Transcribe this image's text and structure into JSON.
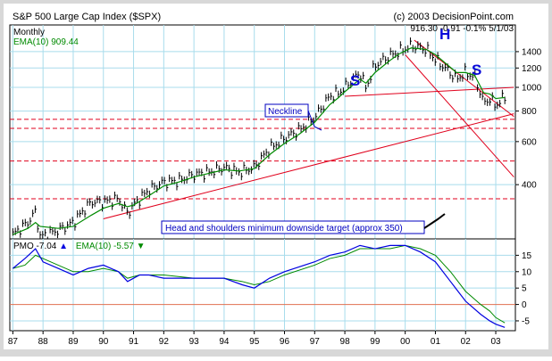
{
  "header": {
    "title": "S&P 500 Large Cap Index ($SPX)",
    "copyright": "(c) 2003 DecisionPoint.com",
    "period": "Monthly",
    "quote": "916.30  -0.91  -0.1%  5/1/03"
  },
  "colors": {
    "background": "#ffffff",
    "frame": "#d8d8d8",
    "plot_bg": "#ffffff",
    "grid": "#a8dcec",
    "price": "#000000",
    "ema_line": "#008a00",
    "trend_lines": "#e0001c",
    "pattern_label": "#0a0ad8",
    "pmo_line": "#0000e0",
    "annotation_text": "#0000c0",
    "zero_line": "#e07050"
  },
  "chart_data": [
    {
      "type": "ohlc_line",
      "name": "price_panel",
      "scale": "log",
      "ylim": [
        240,
        1800
      ],
      "y_ticks": [
        400,
        600,
        800,
        1000,
        1200,
        1400
      ],
      "x_ticks": [
        "87",
        "88",
        "89",
        "90",
        "91",
        "92",
        "93",
        "94",
        "95",
        "96",
        "97",
        "98",
        "99",
        "00",
        "01",
        "02",
        "03"
      ],
      "x": [
        1987.0,
        1987.5,
        1987.75,
        1987.9,
        1988.5,
        1989.0,
        1989.6,
        1990.0,
        1990.5,
        1990.8,
        1991.0,
        1991.5,
        1992.0,
        1992.5,
        1993.0,
        1993.5,
        1994.0,
        1994.5,
        1995.0,
        1995.5,
        1996.0,
        1996.5,
        1997.0,
        1997.5,
        1997.8,
        1998.0,
        1998.5,
        1998.7,
        1999.0,
        1999.5,
        1999.8,
        2000.2,
        2000.7,
        2001.0,
        2001.7,
        2002.0,
        2002.3,
        2002.6,
        2002.8,
        2003.0,
        2003.3
      ],
      "series": [
        {
          "name": "SPX",
          "values": [
            250,
            280,
            310,
            245,
            260,
            280,
            340,
            340,
            350,
            305,
            330,
            380,
            410,
            415,
            440,
            450,
            470,
            450,
            470,
            560,
            620,
            670,
            750,
            920,
            950,
            1000,
            1150,
            990,
            1230,
            1350,
            1400,
            1480,
            1430,
            1300,
            1080,
            1150,
            1100,
            860,
            900,
            840,
            916
          ]
        },
        {
          "name": "EMA(10)",
          "values": [
            250,
            265,
            280,
            270,
            265,
            270,
            300,
            320,
            335,
            325,
            330,
            360,
            395,
            410,
            430,
            445,
            460,
            455,
            465,
            530,
            590,
            645,
            720,
            850,
            910,
            960,
            1080,
            1040,
            1150,
            1290,
            1370,
            1450,
            1430,
            1360,
            1150,
            1150,
            1120,
            950,
            940,
            900,
            909
          ]
        }
      ],
      "labels": {
        "ema": "EMA(10) 909.44",
        "left_shoulder": "S",
        "head": "H",
        "right_shoulder": "S",
        "neckline": "Neckline",
        "target": "Head and shoulders minimum downside target (approx 350)"
      },
      "neckline": {
        "x": [
          1998.0,
          2003.6
        ],
        "y": [
          920,
          1000
        ]
      },
      "support_line": {
        "x": [
          1990.0,
          2003.6
        ],
        "y": [
          290,
          780
        ]
      },
      "channel_upper": {
        "x": [
          2000.3,
          2003.6
        ],
        "y": [
          1560,
          760
        ]
      },
      "channel_lower": {
        "x": [
          2000.0,
          2003.6
        ],
        "y": [
          1360,
          430
        ]
      },
      "horizontal_levels": [
        740,
        680,
        500,
        350
      ]
    },
    {
      "type": "line",
      "name": "pmo_panel",
      "ylim": [
        -8,
        20
      ],
      "y_ticks": [
        -5,
        0,
        5,
        10,
        15
      ],
      "x": [
        1987.0,
        1987.4,
        1987.75,
        1988.0,
        1988.5,
        1989.0,
        1989.5,
        1990.0,
        1990.5,
        1990.8,
        1991.2,
        1991.5,
        1992.0,
        1993.0,
        1994.0,
        1994.6,
        1995.0,
        1995.5,
        1996.0,
        1997.0,
        1997.5,
        1998.0,
        1998.5,
        1999.0,
        1999.5,
        2000.0,
        2000.5,
        2001.0,
        2001.5,
        2002.0,
        2002.5,
        2002.8,
        2003.0,
        2003.3
      ],
      "series": [
        {
          "name": "PMO",
          "values": [
            11,
            14,
            17,
            13,
            11,
            9,
            11,
            12,
            10,
            7,
            9,
            9,
            8,
            8,
            8,
            6,
            5,
            8,
            10,
            13,
            15,
            16,
            18,
            17,
            18,
            18,
            16,
            13,
            7,
            1,
            -3,
            -5,
            -6,
            -7
          ]
        },
        {
          "name": "EMA(10)",
          "values": [
            11,
            12,
            15,
            14,
            12,
            10,
            10,
            11,
            10,
            8,
            9,
            9,
            9,
            8,
            8,
            7,
            6,
            7,
            9,
            12,
            14,
            15,
            17,
            17,
            17,
            18,
            17,
            15,
            10,
            4,
            0,
            -2,
            -4,
            -5.6
          ]
        }
      ],
      "labels": {
        "pmo": "PMO -7.04",
        "ema": "EMA(10) -5.57"
      }
    }
  ]
}
